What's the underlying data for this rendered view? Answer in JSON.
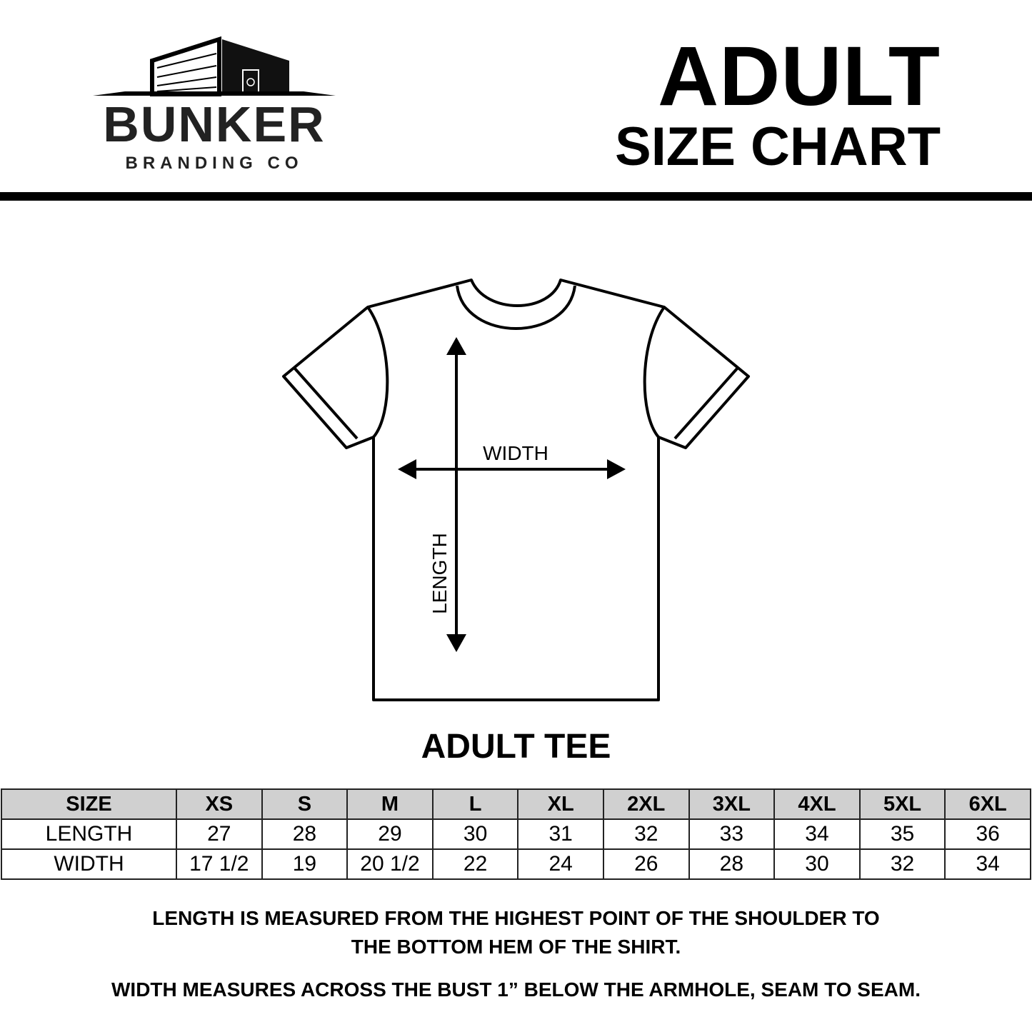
{
  "logo": {
    "brand": "BUNKER",
    "tagline": "BRANDING CO"
  },
  "header": {
    "title": "ADULT",
    "subtitle": "SIZE CHART"
  },
  "diagram": {
    "width_label": "WIDTH",
    "length_label": "LENGTH"
  },
  "product_title": "ADULT TEE",
  "table": {
    "headers": [
      "SIZE",
      "XS",
      "S",
      "M",
      "L",
      "XL",
      "2XL",
      "3XL",
      "4XL",
      "5XL",
      "6XL"
    ],
    "rows": [
      [
        "LENGTH",
        "27",
        "28",
        "29",
        "30",
        "31",
        "32",
        "33",
        "34",
        "35",
        "36"
      ],
      [
        "WIDTH",
        "17 1/2",
        "19",
        "20 1/2",
        "22",
        "24",
        "26",
        "28",
        "30",
        "32",
        "34"
      ]
    ]
  },
  "notes": {
    "length_line1": "LENGTH IS MEASURED FROM THE HIGHEST POINT OF THE SHOULDER TO",
    "length_line2": "THE BOTTOM HEM OF THE SHIRT.",
    "width": "WIDTH MEASURES ACROSS THE BUST 1” BELOW THE ARMHOLE, SEAM TO SEAM."
  }
}
